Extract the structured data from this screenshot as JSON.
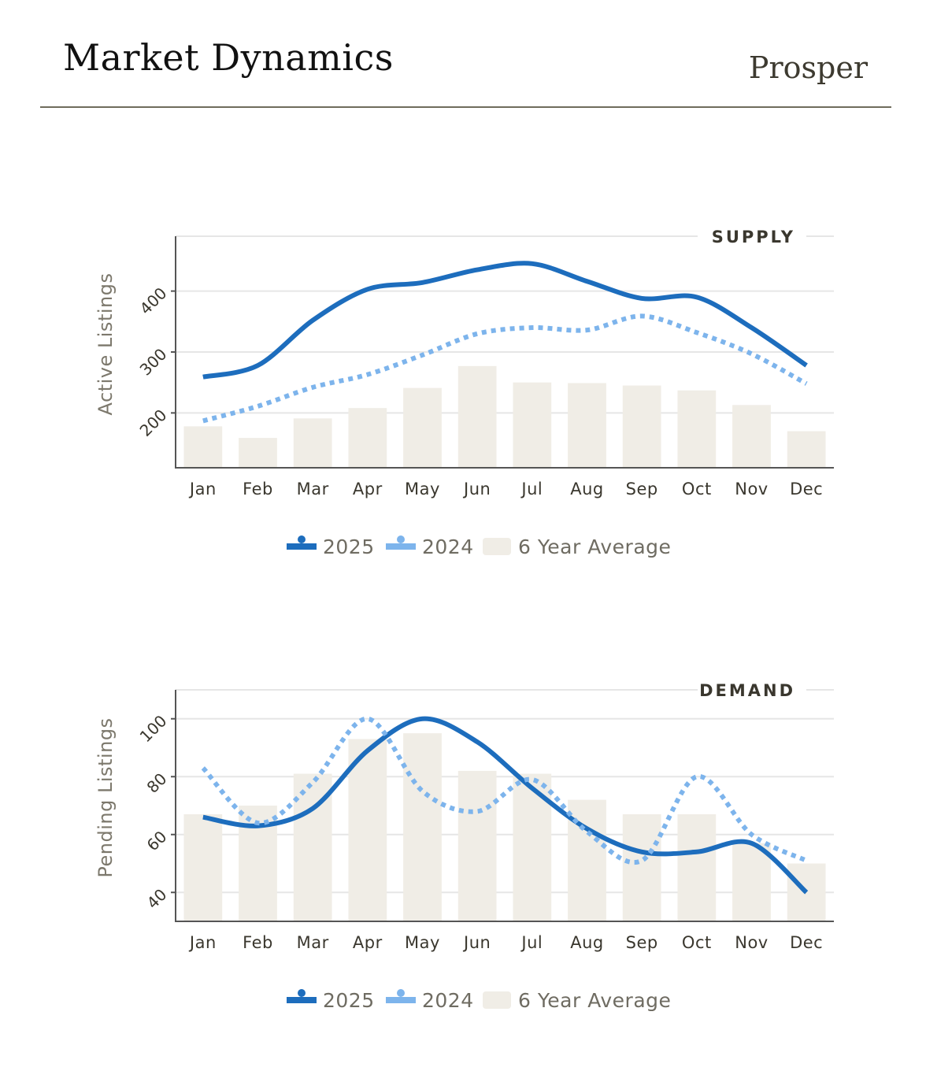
{
  "header": {
    "title": "Market Dynamics",
    "brand": "Prosper"
  },
  "colors": {
    "series_2025": "#1d6dbd",
    "series_2024": "#7db4ec",
    "average_bar": "#f0ede6",
    "gridline": "#e6e6e6",
    "axis": "#555555",
    "header_rule": "#6f6c5c"
  },
  "legend": [
    {
      "label": "2025",
      "icon": "solid-line-marker-icon"
    },
    {
      "label": "2024",
      "icon": "dotted-line-marker-icon"
    },
    {
      "label": "6 Year Average",
      "icon": "bar-swatch-icon"
    }
  ],
  "chart_data": [
    {
      "id": "supply",
      "type": "bar",
      "title": "SUPPLY",
      "xlabel": "",
      "ylabel": "Active Listings",
      "ylim": [
        110,
        490
      ],
      "yticks": [
        200,
        300,
        400
      ],
      "grid": true,
      "legend_position": "bottom-center",
      "categories": [
        "Jan",
        "Feb",
        "Mar",
        "Apr",
        "May",
        "Jun",
        "Jul",
        "Aug",
        "Sep",
        "Oct",
        "Nov",
        "Dec"
      ],
      "series": [
        {
          "name": "6 Year Average",
          "type": "bar",
          "values": [
            178,
            159,
            191,
            208,
            241,
            277,
            250,
            249,
            245,
            237,
            213,
            170
          ]
        },
        {
          "name": "2025",
          "type": "line",
          "style": "solid",
          "values": [
            259,
            278,
            352,
            403,
            414,
            435,
            445,
            416,
            388,
            390,
            340,
            278
          ]
        },
        {
          "name": "2024",
          "type": "line",
          "style": "dotted",
          "values": [
            187,
            211,
            242,
            263,
            295,
            330,
            340,
            336,
            359,
            332,
            297,
            248
          ]
        }
      ]
    },
    {
      "id": "demand",
      "type": "bar",
      "title": "DEMAND",
      "xlabel": "",
      "ylabel": "Pending Listings",
      "ylim": [
        30,
        110
      ],
      "yticks": [
        40,
        60,
        80,
        100
      ],
      "grid": true,
      "legend_position": "bottom-center",
      "categories": [
        "Jan",
        "Feb",
        "Mar",
        "Apr",
        "May",
        "Jun",
        "Jul",
        "Aug",
        "Sep",
        "Oct",
        "Nov",
        "Dec"
      ],
      "series": [
        {
          "name": "6 Year Average",
          "type": "bar",
          "values": [
            67,
            70,
            81,
            93,
            95,
            82,
            81,
            72,
            67,
            67,
            57,
            50
          ]
        },
        {
          "name": "2025",
          "type": "line",
          "style": "solid",
          "values": [
            66,
            63,
            69,
            89,
            100,
            92,
            76,
            62,
            54,
            54,
            57,
            40
          ]
        },
        {
          "name": "2024",
          "type": "line",
          "style": "dotted",
          "values": [
            83,
            64,
            78,
            100,
            75,
            68,
            79,
            61,
            51,
            80,
            60,
            51
          ]
        }
      ]
    }
  ]
}
